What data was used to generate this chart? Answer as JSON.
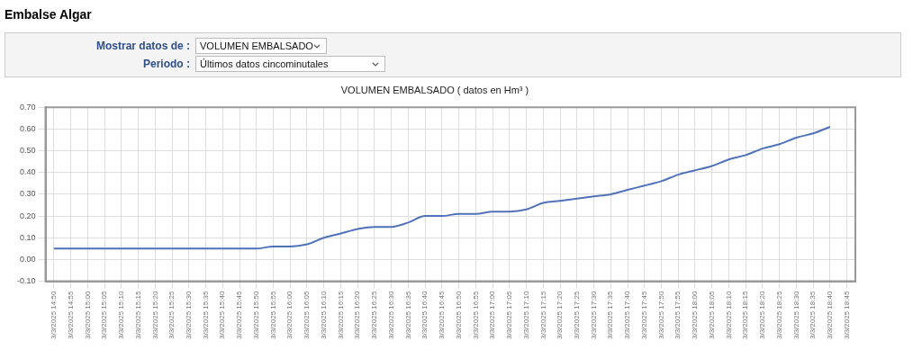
{
  "chart_data": {
    "type": "line",
    "title": "Embalse Algar",
    "subtitle": "VOLUMEN EMBALSADO ( datos en Hm³ )",
    "annotations": [
      "Mostrar datos de :",
      "VOLUMEN EMBALSADO",
      "Periodo :",
      "Últimos datos cincominutales"
    ],
    "categories": [
      "3/3/2025 14:50",
      "3/3/2025 14:55",
      "3/3/2025 15:00",
      "3/3/2025 15:05",
      "3/3/2025 15:10",
      "3/3/2025 15:15",
      "3/3/2025 15:20",
      "3/3/2025 15:25",
      "3/3/2025 15:30",
      "3/3/2025 15:35",
      "3/3/2025 15:40",
      "3/3/2025 15:45",
      "3/3/2025 15:50",
      "3/3/2025 15:55",
      "3/3/2025 16:00",
      "3/3/2025 16:05",
      "3/3/2025 16:10",
      "3/3/2025 16:15",
      "3/3/2025 16:20",
      "3/3/2025 16:25",
      "3/3/2025 16:30",
      "3/3/2025 16:35",
      "3/3/2025 16:40",
      "3/3/2025 16:45",
      "3/3/2025 16:50",
      "3/3/2025 16:55",
      "3/3/2025 17:00",
      "3/3/2025 17:05",
      "3/3/2025 17:10",
      "3/3/2025 17:15",
      "3/3/2025 17:20",
      "3/3/2025 17:25",
      "3/3/2025 17:30",
      "3/3/2025 17:35",
      "3/3/2025 17:40",
      "3/3/2025 17:45",
      "3/3/2025 17:50",
      "3/3/2025 17:55",
      "3/3/2025 18:00",
      "3/3/2025 18:05",
      "3/3/2025 18:10",
      "3/3/2025 18:15",
      "3/3/2025 18:20",
      "3/3/2025 18:25",
      "3/3/2025 18:30",
      "3/3/2025 18:35",
      "3/3/2025 18:40",
      "3/3/2025 18:45"
    ],
    "series": [
      {
        "color": "#4f72b8",
        "values": [
          0.05,
          0.05,
          0.05,
          0.05,
          0.05,
          0.05,
          0.05,
          0.05,
          0.05,
          0.05,
          0.05,
          0.05,
          0.05,
          0.06,
          0.06,
          0.07,
          0.1,
          0.12,
          0.14,
          0.15,
          0.15,
          0.17,
          0.2,
          0.2,
          0.21,
          0.21,
          0.22,
          0.22,
          0.23,
          0.26,
          0.27,
          0.28,
          0.29,
          0.3,
          0.32,
          0.34,
          0.36,
          0.39,
          0.41,
          0.43,
          0.46,
          0.48,
          0.51,
          0.53,
          0.56,
          0.58,
          0.61,
          null
        ]
      }
    ],
    "ylim": [
      -0.1,
      0.7
    ],
    "yticks": [
      {
        "value": -0.1,
        "label": "-0.10"
      },
      {
        "value": 0,
        "label": "0.00"
      },
      {
        "value": 0.1,
        "label": "0.10"
      },
      {
        "value": 0.2,
        "label": "0.20"
      },
      {
        "value": 0.3,
        "label": "0.30"
      },
      {
        "value": 0.4,
        "label": "0.40"
      },
      {
        "value": 0.5,
        "label": "0.50"
      },
      {
        "value": 0.6,
        "label": "0.60"
      },
      {
        "value": 0.7,
        "label": "0.70"
      }
    ],
    "grid": true,
    "legend": false,
    "marker": "none",
    "line_style": "solid"
  }
}
